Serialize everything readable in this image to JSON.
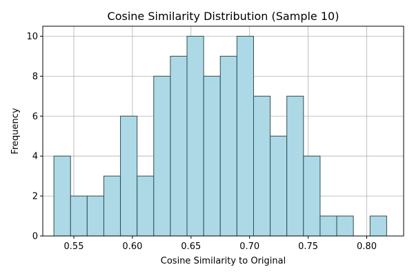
{
  "chart_data": {
    "type": "bar",
    "title": "Cosine Similarity Distribution (Sample 10)",
    "xlabel": "Cosine Similarity to Original",
    "ylabel": "Frequency",
    "xlim": [
      0.5235,
      0.8315
    ],
    "ylim": [
      0,
      10.5
    ],
    "grid": true,
    "bin_edges": [
      0.533,
      0.5472,
      0.5614,
      0.5756,
      0.5898,
      0.604,
      0.6182,
      0.6324,
      0.6466,
      0.6608,
      0.675,
      0.6892,
      0.7034,
      0.7176,
      0.7318,
      0.746,
      0.7602,
      0.7744,
      0.7886,
      0.8028,
      0.817
    ],
    "counts": [
      4,
      2,
      2,
      3,
      6,
      3,
      8,
      9,
      10,
      8,
      9,
      10,
      7,
      5,
      7,
      4,
      1,
      1,
      0,
      1
    ],
    "x_ticks": [
      0.55,
      0.6,
      0.65,
      0.7,
      0.75,
      0.8
    ],
    "x_tick_labels": [
      "0.55",
      "0.60",
      "0.65",
      "0.70",
      "0.75",
      "0.80"
    ],
    "y_ticks": [
      0,
      2,
      4,
      6,
      8,
      10
    ],
    "y_tick_labels": [
      "0",
      "2",
      "4",
      "6",
      "8",
      "10"
    ]
  },
  "colors": {
    "bar_fill": "#add8e6",
    "bar_edge": "#2f4f4f",
    "grid": "#b0b0b0",
    "axis": "#000000"
  }
}
